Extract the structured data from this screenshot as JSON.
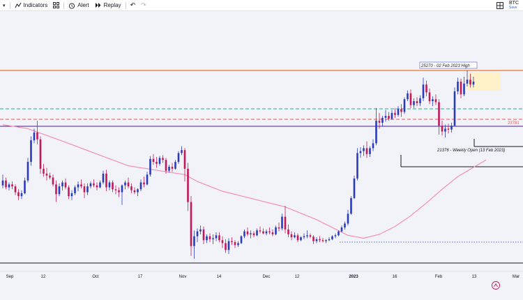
{
  "toolbar": {
    "indicators_label": "Indicators",
    "alert_label": "Alert",
    "replay_label": "Replay",
    "symbol": "BTC",
    "save_label": "Save"
  },
  "colors": {
    "bull": "#2a3bb7",
    "bear": "#c2185b",
    "ma": "#f48fb1",
    "resistance": "#f4a373",
    "purple_line": "#4a148c",
    "teal_dash": "#26a69a",
    "red_dash": "#ef5350",
    "highlight": "#fff2c8"
  },
  "chart_data": {
    "type": "candlestick",
    "x_ticks": [
      "Sep",
      "12",
      "Oct",
      "17",
      "Nov",
      "14",
      "Dec",
      "12",
      "2023",
      "16",
      "Feb",
      "13",
      "Mar"
    ],
    "levels": {
      "high_label": "25270 - 02 Feb 2023 High",
      "level_label": "23781",
      "weekly_open_label": "21376 - Weekly Open (13 Feb 2023)"
    },
    "candles": [
      [
        19400,
        19950,
        19250,
        19650
      ],
      [
        19650,
        19800,
        19200,
        19300
      ],
      [
        19300,
        19550,
        19150,
        19450
      ],
      [
        19450,
        19600,
        19200,
        19350
      ],
      [
        19350,
        19450,
        18900,
        19050
      ],
      [
        19050,
        19200,
        18650,
        18850
      ],
      [
        18850,
        19150,
        18700,
        19000
      ],
      [
        19000,
        19800,
        18950,
        19650
      ],
      [
        19650,
        20800,
        19550,
        20600
      ],
      [
        20600,
        21900,
        20400,
        21700
      ],
      [
        21700,
        22300,
        21550,
        22100
      ],
      [
        22100,
        22700,
        21500,
        21750
      ],
      [
        21750,
        21900,
        20000,
        20250
      ],
      [
        20250,
        20500,
        19850,
        20000
      ],
      [
        20000,
        20300,
        19650,
        19900
      ],
      [
        19900,
        20050,
        19700,
        19800
      ],
      [
        19800,
        19950,
        19350,
        19450
      ],
      [
        19450,
        19650,
        18550,
        18950
      ],
      [
        18950,
        19500,
        18850,
        19350
      ],
      [
        19350,
        19650,
        19150,
        19550
      ],
      [
        19550,
        19750,
        19200,
        19300
      ],
      [
        19300,
        19400,
        18700,
        18850
      ],
      [
        18850,
        19150,
        18650,
        19000
      ],
      [
        19000,
        19400,
        18900,
        19300
      ],
      [
        19300,
        19600,
        19100,
        19450
      ],
      [
        19450,
        19700,
        19250,
        19350
      ],
      [
        19350,
        19500,
        18750,
        19050
      ],
      [
        19050,
        19500,
        18900,
        19350
      ],
      [
        19350,
        19600,
        19250,
        19500
      ],
      [
        19500,
        19700,
        19300,
        19400
      ],
      [
        19400,
        19550,
        19150,
        19300
      ],
      [
        19300,
        19650,
        19250,
        19550
      ],
      [
        19550,
        20150,
        19450,
        20000
      ],
      [
        20000,
        20200,
        19100,
        19300
      ],
      [
        19300,
        19650,
        19150,
        19550
      ],
      [
        19550,
        19650,
        19050,
        19200
      ],
      [
        19200,
        19400,
        18950,
        19150
      ],
      [
        19150,
        19300,
        18800,
        19050
      ],
      [
        19050,
        19450,
        18400,
        19400
      ],
      [
        19400,
        19650,
        19200,
        19550
      ],
      [
        19550,
        19800,
        19250,
        19350
      ],
      [
        19350,
        19500,
        19000,
        19150
      ],
      [
        19150,
        19300,
        18950,
        19050
      ],
      [
        19050,
        19250,
        18850,
        19200
      ],
      [
        19200,
        19700,
        19100,
        19550
      ],
      [
        19550,
        19850,
        19300,
        19450
      ],
      [
        19450,
        20100,
        19400,
        19950
      ],
      [
        19950,
        20900,
        19850,
        20750
      ],
      [
        20750,
        21000,
        20450,
        20600
      ],
      [
        20600,
        20850,
        20300,
        20500
      ],
      [
        20500,
        20900,
        20400,
        20800
      ],
      [
        20800,
        20950,
        20550,
        20700
      ],
      [
        20700,
        20800,
        20000,
        20150
      ],
      [
        20150,
        20450,
        20050,
        20350
      ],
      [
        20350,
        20550,
        20100,
        20250
      ],
      [
        20250,
        20700,
        20200,
        20600
      ],
      [
        20600,
        21150,
        20500,
        21050
      ],
      [
        21050,
        21400,
        20950,
        21200
      ],
      [
        21200,
        21300,
        19600,
        20250
      ],
      [
        20250,
        20550,
        18100,
        18550
      ],
      [
        18550,
        18850,
        15800,
        16300
      ],
      [
        16300,
        17100,
        15650,
        16800
      ],
      [
        16800,
        17200,
        16500,
        17050
      ],
      [
        17050,
        17350,
        16900,
        17150
      ],
      [
        17150,
        17300,
        16400,
        16600
      ],
      [
        16600,
        16900,
        16450,
        16800
      ],
      [
        16800,
        16950,
        16500,
        16650
      ],
      [
        16650,
        16900,
        16400,
        16700
      ],
      [
        16700,
        17000,
        16550,
        16850
      ],
      [
        16850,
        17000,
        16500,
        16600
      ],
      [
        16600,
        16800,
        16200,
        16450
      ],
      [
        16450,
        16650,
        15950,
        16100
      ],
      [
        16100,
        16700,
        15900,
        16550
      ],
      [
        16550,
        16750,
        16350,
        16500
      ],
      [
        16500,
        16600,
        16200,
        16350
      ],
      [
        16350,
        16550,
        16250,
        16450
      ],
      [
        16450,
        16850,
        16400,
        16800
      ],
      [
        16800,
        17150,
        16700,
        17050
      ],
      [
        17050,
        17250,
        16800,
        16900
      ],
      [
        16900,
        17100,
        16700,
        16950
      ],
      [
        16950,
        17050,
        16750,
        16850
      ],
      [
        16850,
        17200,
        16800,
        17100
      ],
      [
        17100,
        17300,
        16950,
        17050
      ],
      [
        17050,
        17200,
        16900,
        16950
      ],
      [
        16950,
        17150,
        16850,
        17050
      ],
      [
        17050,
        17250,
        16900,
        17000
      ],
      [
        17000,
        17150,
        16800,
        16900
      ],
      [
        16900,
        17350,
        16850,
        17250
      ],
      [
        17250,
        17500,
        17050,
        17200
      ],
      [
        17200,
        17950,
        17100,
        17800
      ],
      [
        17800,
        18350,
        16950,
        17150
      ],
      [
        17150,
        17400,
        16750,
        16900
      ],
      [
        16900,
        17050,
        16600,
        16750
      ],
      [
        16750,
        17000,
        16700,
        16850
      ],
      [
        16850,
        16950,
        16500,
        16600
      ],
      [
        16600,
        16800,
        16550,
        16750
      ],
      [
        16750,
        16950,
        16650,
        16800
      ],
      [
        16800,
        17100,
        16700,
        16850
      ],
      [
        16850,
        16950,
        16700,
        16780
      ],
      [
        16780,
        16850,
        16400,
        16550
      ],
      [
        16550,
        16750,
        16450,
        16650
      ],
      [
        16650,
        16800,
        16500,
        16600
      ],
      [
        16600,
        16720,
        16480,
        16550
      ],
      [
        16550,
        16650,
        16450,
        16600
      ],
      [
        16600,
        16750,
        16550,
        16650
      ],
      [
        16650,
        16850,
        16600,
        16800
      ],
      [
        16800,
        16950,
        16700,
        16850
      ],
      [
        16850,
        17100,
        16800,
        17050
      ],
      [
        17050,
        17350,
        17000,
        17250
      ],
      [
        17250,
        17550,
        17150,
        17450
      ],
      [
        17450,
        18150,
        17350,
        17950
      ],
      [
        17950,
        18850,
        17900,
        18750
      ],
      [
        18750,
        19900,
        18700,
        19750
      ],
      [
        19750,
        21300,
        19650,
        21050
      ],
      [
        21050,
        21350,
        20800,
        21150
      ],
      [
        21150,
        21450,
        20900,
        21300
      ],
      [
        21300,
        21650,
        20800,
        21000
      ],
      [
        21000,
        21400,
        20850,
        21300
      ],
      [
        21300,
        21750,
        21150,
        21550
      ],
      [
        21550,
        23350,
        21450,
        22700
      ],
      [
        22700,
        23100,
        22300,
        22600
      ],
      [
        22600,
        22950,
        22400,
        22850
      ],
      [
        22850,
        23250,
        22650,
        22950
      ],
      [
        22950,
        23150,
        22700,
        22800
      ],
      [
        22800,
        23250,
        22750,
        23100
      ],
      [
        23100,
        23350,
        22850,
        23000
      ],
      [
        23000,
        23450,
        22900,
        23300
      ],
      [
        23300,
        23550,
        22900,
        23150
      ],
      [
        23150,
        23900,
        23050,
        23800
      ],
      [
        23800,
        24250,
        23700,
        24100
      ],
      [
        24100,
        24300,
        23350,
        23500
      ],
      [
        23500,
        23850,
        23350,
        23700
      ],
      [
        23700,
        23900,
        23450,
        23600
      ],
      [
        23600,
        24000,
        23450,
        23850
      ],
      [
        23850,
        24900,
        23700,
        24550
      ],
      [
        24550,
        24750,
        23950,
        24150
      ],
      [
        24150,
        24350,
        23550,
        23700
      ],
      [
        23700,
        23950,
        23450,
        23800
      ],
      [
        23800,
        24050,
        23500,
        23650
      ],
      [
        23650,
        23800,
        22000,
        22450
      ],
      [
        22450,
        22700,
        21950,
        22150
      ],
      [
        22150,
        22500,
        21850,
        22300
      ],
      [
        22300,
        22550,
        22050,
        22250
      ],
      [
        22250,
        22600,
        22100,
        22450
      ],
      [
        22450,
        24400,
        22400,
        24200
      ],
      [
        24200,
        24900,
        24050,
        24700
      ],
      [
        24700,
        24850,
        23850,
        24050
      ],
      [
        24050,
        24950,
        23950,
        24600
      ],
      [
        24600,
        25270,
        24450,
        24800
      ],
      [
        24800,
        25100,
        24400,
        24550
      ],
      [
        24550,
        24950,
        24400,
        24700
      ]
    ],
    "ma_values": [
      [
        0,
        22500
      ],
      [
        8,
        22300
      ],
      [
        20,
        21600
      ],
      [
        30,
        21000
      ],
      [
        40,
        20400
      ],
      [
        50,
        20150
      ],
      [
        58,
        19950
      ],
      [
        62,
        19600
      ],
      [
        70,
        19100
      ],
      [
        80,
        18700
      ],
      [
        90,
        18300
      ],
      [
        100,
        17650
      ],
      [
        105,
        17250
      ],
      [
        110,
        16850
      ],
      [
        115,
        16700
      ],
      [
        120,
        16900
      ],
      [
        125,
        17300
      ],
      [
        130,
        17850
      ],
      [
        135,
        18500
      ],
      [
        140,
        19200
      ],
      [
        145,
        19850
      ],
      [
        154,
        20700
      ]
    ]
  }
}
